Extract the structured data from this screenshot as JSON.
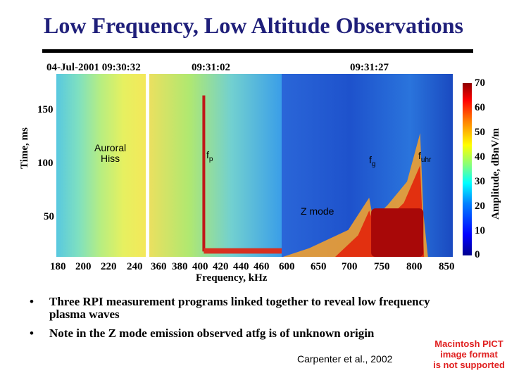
{
  "slide": {
    "title": "Low Frequency, Low Altitude Observations",
    "bullets": [
      "Three RPI measurement programs linked together to reveal low frequency plasma waves",
      "Note in the Z mode emission observed atfg is of unknown origin"
    ],
    "credit": "Carpenter et al., 2002",
    "pict_notice": [
      "Macintosh PICT",
      "image format",
      "is not supported"
    ]
  },
  "chart_data": {
    "type": "heatmap",
    "title": "",
    "xlabel": "Frequency, kHz",
    "ylabel": "Time, ms",
    "timestamps": [
      "04-Jul-2001 09:30:32",
      "09:31:02",
      "09:31:27"
    ],
    "panels": [
      {
        "name": "panel-1",
        "x_ticks": [
          180,
          200,
          220,
          240
        ],
        "xlim": [
          176,
          246
        ]
      },
      {
        "name": "panel-2",
        "x_ticks": [
          360,
          380,
          400,
          420,
          440,
          460
        ],
        "xlim": [
          356,
          475
        ]
      },
      {
        "name": "panel-3",
        "x_ticks": [
          600,
          650,
          700,
          750,
          800,
          850
        ],
        "xlim": [
          598,
          860
        ]
      }
    ],
    "y_ticks": [
      50,
      100,
      150
    ],
    "ylim": [
      0,
      170
    ],
    "annotations": [
      {
        "text_lines": [
          "Auroral",
          "Hiss"
        ],
        "panel": 0,
        "x": 210,
        "y": 100
      },
      {
        "text": "f",
        "subscript": "p",
        "panel": 1,
        "x": 407,
        "y": 105
      },
      {
        "text": "f",
        "subscript": "g",
        "panel": 2,
        "x": 730,
        "y": 100
      },
      {
        "text": "f",
        "subscript": "uhr",
        "panel": 2,
        "x": 805,
        "y": 105
      },
      {
        "text": "Z mode",
        "panel": 2,
        "x": 640,
        "y": 45
      }
    ],
    "features": [
      {
        "name": "fp-line",
        "panel": 1,
        "x": 405,
        "y_range": [
          5,
          150
        ]
      },
      {
        "name": "fp-bottom-band",
        "panel": 1,
        "x_range": [
          405,
          475
        ],
        "y_range": [
          3,
          8
        ]
      },
      {
        "name": "fg-zmode-peak",
        "panel": 2,
        "x_peak": 732,
        "y_peak": 55
      },
      {
        "name": "fuhr-emission-peak",
        "panel": 2,
        "x_peak": 810,
        "y_peak": 115
      },
      {
        "name": "zmode-high-region",
        "panel": 2,
        "x_range": [
          735,
          815
        ],
        "y_range": [
          0,
          45
        ]
      }
    ],
    "colorbar": {
      "label": "Amplitude, dBnV/m",
      "ticks": [
        0,
        10,
        20,
        30,
        40,
        50,
        60,
        70
      ],
      "range": [
        0,
        70
      ],
      "colors": [
        "#00008f",
        "#0000ff",
        "#0080ff",
        "#00ffff",
        "#80ff80",
        "#ffff00",
        "#ff8000",
        "#ff0000",
        "#8f0000"
      ]
    }
  }
}
